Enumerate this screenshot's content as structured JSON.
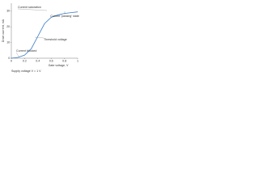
{
  "chart_data": {
    "type": "line",
    "y_label": "Drain current, mA",
    "x_label": "Gate voltage, V",
    "footnote": "Supply voltage V = 1 V",
    "x": [
      0,
      0.1,
      0.2,
      0.3,
      0.4,
      0.5,
      0.6,
      0.7,
      0.8,
      0.9,
      1.0
    ],
    "series": [
      {
        "name": "Drain current",
        "color": "#3a7cc8",
        "values": [
          0,
          0.5,
          2,
          6,
          14,
          22,
          26,
          27.5,
          28.5,
          29,
          29.5
        ]
      }
    ],
    "xlim": [
      0,
      1
    ],
    "xticks": [
      0,
      0.2,
      0.4,
      0.6,
      0.8,
      1
    ],
    "ylim": [
      0,
      35
    ],
    "yticks": [
      0,
      10,
      20,
      30
    ],
    "grid": false,
    "annotations": [
      "Current saturation",
      "Current 'passing' state",
      "Threshold voltage",
      "Current blocked"
    ]
  }
}
